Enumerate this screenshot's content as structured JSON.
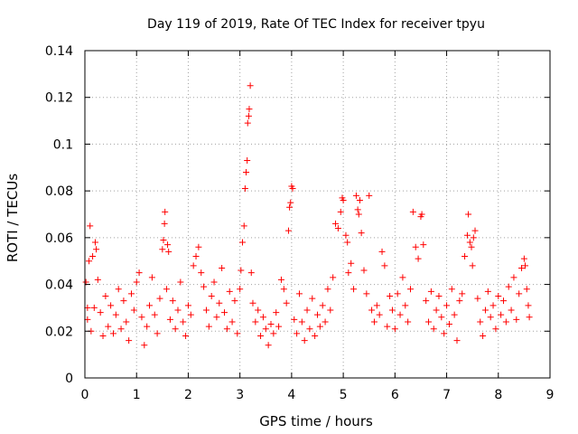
{
  "chart_data": {
    "type": "scatter",
    "title": "Day 119 of 2019, Rate Of TEC Index for receiver tpyu",
    "xlabel": "GPS time / hours",
    "ylabel": "ROTI / TECUs",
    "xlim": [
      0,
      9
    ],
    "ylim": [
      0,
      0.14
    ],
    "xticks": [
      "0",
      "1",
      "2",
      "3",
      "4",
      "5",
      "6",
      "7",
      "8",
      "9"
    ],
    "yticks": [
      "0",
      "0.02",
      "0.04",
      "0.06",
      "0.08",
      "0.1",
      "0.12",
      "0.14"
    ],
    "grid": true,
    "marker": "+",
    "color": "#ff0000",
    "series": [
      {
        "name": "ROTI",
        "points": [
          [
            0.02,
            0.041
          ],
          [
            0.05,
            0.03
          ],
          [
            0.08,
            0.05
          ],
          [
            0.1,
            0.065
          ],
          [
            0.15,
            0.052
          ],
          [
            0.2,
            0.058
          ],
          [
            0.22,
            0.055
          ],
          [
            0.05,
            0.025
          ],
          [
            0.12,
            0.02
          ],
          [
            0.18,
            0.03
          ],
          [
            0.25,
            0.042
          ],
          [
            0.3,
            0.028
          ],
          [
            0.35,
            0.018
          ],
          [
            0.4,
            0.035
          ],
          [
            0.45,
            0.022
          ],
          [
            0.5,
            0.031
          ],
          [
            0.55,
            0.019
          ],
          [
            0.6,
            0.027
          ],
          [
            0.65,
            0.038
          ],
          [
            0.7,
            0.021
          ],
          [
            0.75,
            0.033
          ],
          [
            0.8,
            0.024
          ],
          [
            0.85,
            0.016
          ],
          [
            0.9,
            0.036
          ],
          [
            0.95,
            0.029
          ],
          [
            1.0,
            0.041
          ],
          [
            1.05,
            0.045
          ],
          [
            1.1,
            0.026
          ],
          [
            1.15,
            0.014
          ],
          [
            1.2,
            0.022
          ],
          [
            1.25,
            0.031
          ],
          [
            1.3,
            0.043
          ],
          [
            1.35,
            0.027
          ],
          [
            1.4,
            0.019
          ],
          [
            1.45,
            0.034
          ],
          [
            1.5,
            0.055
          ],
          [
            1.52,
            0.059
          ],
          [
            1.54,
            0.066
          ],
          [
            1.55,
            0.071
          ],
          [
            1.6,
            0.057
          ],
          [
            1.62,
            0.054
          ],
          [
            1.58,
            0.038
          ],
          [
            1.65,
            0.025
          ],
          [
            1.7,
            0.033
          ],
          [
            1.75,
            0.021
          ],
          [
            1.8,
            0.029
          ],
          [
            1.85,
            0.041
          ],
          [
            1.9,
            0.024
          ],
          [
            1.95,
            0.018
          ],
          [
            2.0,
            0.031
          ],
          [
            2.05,
            0.027
          ],
          [
            2.1,
            0.048
          ],
          [
            2.15,
            0.052
          ],
          [
            2.2,
            0.056
          ],
          [
            2.25,
            0.045
          ],
          [
            2.3,
            0.039
          ],
          [
            2.35,
            0.029
          ],
          [
            2.4,
            0.022
          ],
          [
            2.45,
            0.035
          ],
          [
            2.5,
            0.041
          ],
          [
            2.55,
            0.026
          ],
          [
            2.6,
            0.032
          ],
          [
            2.65,
            0.047
          ],
          [
            2.7,
            0.028
          ],
          [
            2.75,
            0.021
          ],
          [
            2.8,
            0.037
          ],
          [
            2.85,
            0.024
          ],
          [
            2.9,
            0.033
          ],
          [
            2.95,
            0.019
          ],
          [
            3.0,
            0.038
          ],
          [
            3.02,
            0.046
          ],
          [
            3.05,
            0.058
          ],
          [
            3.08,
            0.065
          ],
          [
            3.1,
            0.081
          ],
          [
            3.12,
            0.088
          ],
          [
            3.14,
            0.093
          ],
          [
            3.15,
            0.109
          ],
          [
            3.17,
            0.112
          ],
          [
            3.18,
            0.115
          ],
          [
            3.2,
            0.125
          ],
          [
            3.22,
            0.045
          ],
          [
            3.25,
            0.032
          ],
          [
            3.3,
            0.024
          ],
          [
            3.35,
            0.029
          ],
          [
            3.4,
            0.018
          ],
          [
            3.45,
            0.026
          ],
          [
            3.5,
            0.021
          ],
          [
            3.55,
            0.014
          ],
          [
            3.6,
            0.023
          ],
          [
            3.65,
            0.019
          ],
          [
            3.7,
            0.028
          ],
          [
            3.75,
            0.022
          ],
          [
            3.8,
            0.042
          ],
          [
            3.85,
            0.038
          ],
          [
            3.9,
            0.032
          ],
          [
            3.94,
            0.063
          ],
          [
            3.96,
            0.073
          ],
          [
            3.98,
            0.075
          ],
          [
            4.0,
            0.082
          ],
          [
            4.02,
            0.081
          ],
          [
            4.05,
            0.025
          ],
          [
            4.1,
            0.019
          ],
          [
            4.15,
            0.036
          ],
          [
            4.2,
            0.024
          ],
          [
            4.25,
            0.016
          ],
          [
            4.3,
            0.029
          ],
          [
            4.35,
            0.021
          ],
          [
            4.4,
            0.034
          ],
          [
            4.45,
            0.018
          ],
          [
            4.5,
            0.027
          ],
          [
            4.55,
            0.022
          ],
          [
            4.6,
            0.031
          ],
          [
            4.65,
            0.024
          ],
          [
            4.7,
            0.038
          ],
          [
            4.75,
            0.029
          ],
          [
            4.8,
            0.043
          ],
          [
            4.85,
            0.066
          ],
          [
            4.9,
            0.064
          ],
          [
            4.95,
            0.071
          ],
          [
            4.98,
            0.077
          ],
          [
            5.0,
            0.076
          ],
          [
            5.05,
            0.061
          ],
          [
            5.08,
            0.058
          ],
          [
            5.1,
            0.045
          ],
          [
            5.15,
            0.049
          ],
          [
            5.2,
            0.038
          ],
          [
            5.25,
            0.078
          ],
          [
            5.28,
            0.072
          ],
          [
            5.3,
            0.07
          ],
          [
            5.32,
            0.076
          ],
          [
            5.35,
            0.062
          ],
          [
            5.4,
            0.046
          ],
          [
            5.45,
            0.036
          ],
          [
            5.5,
            0.078
          ],
          [
            5.55,
            0.029
          ],
          [
            5.6,
            0.024
          ],
          [
            5.65,
            0.031
          ],
          [
            5.7,
            0.027
          ],
          [
            5.75,
            0.054
          ],
          [
            5.8,
            0.048
          ],
          [
            5.85,
            0.022
          ],
          [
            5.9,
            0.035
          ],
          [
            5.95,
            0.029
          ],
          [
            6.0,
            0.021
          ],
          [
            6.05,
            0.036
          ],
          [
            6.1,
            0.027
          ],
          [
            6.15,
            0.043
          ],
          [
            6.2,
            0.031
          ],
          [
            6.25,
            0.024
          ],
          [
            6.3,
            0.038
          ],
          [
            6.35,
            0.071
          ],
          [
            6.4,
            0.056
          ],
          [
            6.45,
            0.051
          ],
          [
            6.5,
            0.069
          ],
          [
            6.52,
            0.07
          ],
          [
            6.55,
            0.057
          ],
          [
            6.6,
            0.033
          ],
          [
            6.65,
            0.024
          ],
          [
            6.7,
            0.037
          ],
          [
            6.75,
            0.021
          ],
          [
            6.8,
            0.029
          ],
          [
            6.85,
            0.035
          ],
          [
            6.9,
            0.026
          ],
          [
            6.95,
            0.019
          ],
          [
            7.0,
            0.031
          ],
          [
            7.05,
            0.023
          ],
          [
            7.1,
            0.038
          ],
          [
            7.15,
            0.027
          ],
          [
            7.2,
            0.016
          ],
          [
            7.25,
            0.033
          ],
          [
            7.3,
            0.036
          ],
          [
            7.35,
            0.052
          ],
          [
            7.4,
            0.061
          ],
          [
            7.42,
            0.07
          ],
          [
            7.45,
            0.058
          ],
          [
            7.48,
            0.056
          ],
          [
            7.5,
            0.048
          ],
          [
            7.52,
            0.06
          ],
          [
            7.55,
            0.063
          ],
          [
            7.6,
            0.034
          ],
          [
            7.65,
            0.024
          ],
          [
            7.7,
            0.018
          ],
          [
            7.75,
            0.029
          ],
          [
            7.8,
            0.037
          ],
          [
            7.85,
            0.026
          ],
          [
            7.9,
            0.031
          ],
          [
            7.95,
            0.021
          ],
          [
            8.0,
            0.035
          ],
          [
            8.05,
            0.027
          ],
          [
            8.1,
            0.033
          ],
          [
            8.15,
            0.024
          ],
          [
            8.2,
            0.039
          ],
          [
            8.25,
            0.029
          ],
          [
            8.3,
            0.043
          ],
          [
            8.35,
            0.025
          ],
          [
            8.4,
            0.036
          ],
          [
            8.45,
            0.047
          ],
          [
            8.5,
            0.051
          ],
          [
            8.52,
            0.048
          ],
          [
            8.55,
            0.038
          ],
          [
            8.58,
            0.031
          ],
          [
            8.6,
            0.026
          ]
        ]
      }
    ]
  }
}
